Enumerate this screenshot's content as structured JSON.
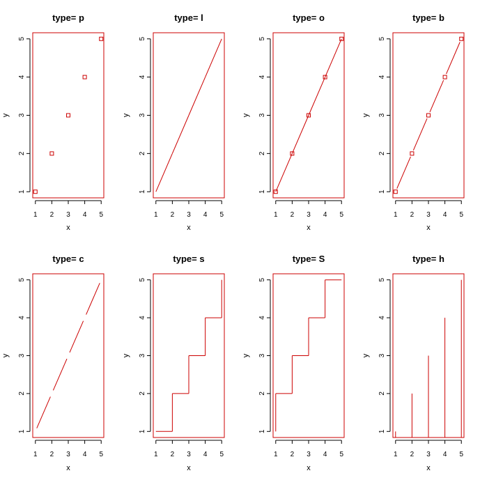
{
  "colors": {
    "series": "#cc0000",
    "axis": "#000000",
    "background": "#ffffff"
  },
  "chart_data": [
    {
      "type": "scatter",
      "title": "type= p",
      "xlabel": "x",
      "ylabel": "y",
      "x": [
        1,
        2,
        3,
        4,
        5
      ],
      "y": [
        1,
        2,
        3,
        4,
        5
      ],
      "xlim": [
        1,
        5
      ],
      "ylim": [
        1,
        5
      ],
      "xticks": [
        "1",
        "2",
        "3",
        "4",
        "5"
      ],
      "yticks": [
        "1",
        "2",
        "3",
        "4",
        "5"
      ],
      "grid": false,
      "plot_type": "p"
    },
    {
      "type": "line",
      "title": "type= l",
      "xlabel": "x",
      "ylabel": "y",
      "x": [
        1,
        2,
        3,
        4,
        5
      ],
      "y": [
        1,
        2,
        3,
        4,
        5
      ],
      "xlim": [
        1,
        5
      ],
      "ylim": [
        1,
        5
      ],
      "xticks": [
        "1",
        "2",
        "3",
        "4",
        "5"
      ],
      "yticks": [
        "1",
        "2",
        "3",
        "4",
        "5"
      ],
      "grid": false,
      "plot_type": "l"
    },
    {
      "type": "line",
      "title": "type= o",
      "xlabel": "x",
      "ylabel": "y",
      "x": [
        1,
        2,
        3,
        4,
        5
      ],
      "y": [
        1,
        2,
        3,
        4,
        5
      ],
      "xlim": [
        1,
        5
      ],
      "ylim": [
        1,
        5
      ],
      "xticks": [
        "1",
        "2",
        "3",
        "4",
        "5"
      ],
      "yticks": [
        "1",
        "2",
        "3",
        "4",
        "5"
      ],
      "grid": false,
      "plot_type": "o"
    },
    {
      "type": "line",
      "title": "type= b",
      "xlabel": "x",
      "ylabel": "y",
      "x": [
        1,
        2,
        3,
        4,
        5
      ],
      "y": [
        1,
        2,
        3,
        4,
        5
      ],
      "xlim": [
        1,
        5
      ],
      "ylim": [
        1,
        5
      ],
      "xticks": [
        "1",
        "2",
        "3",
        "4",
        "5"
      ],
      "yticks": [
        "1",
        "2",
        "3",
        "4",
        "5"
      ],
      "grid": false,
      "plot_type": "b"
    },
    {
      "type": "line",
      "title": "type= c",
      "xlabel": "x",
      "ylabel": "y",
      "x": [
        1,
        2,
        3,
        4,
        5
      ],
      "y": [
        1,
        2,
        3,
        4,
        5
      ],
      "xlim": [
        1,
        5
      ],
      "ylim": [
        1,
        5
      ],
      "xticks": [
        "1",
        "2",
        "3",
        "4",
        "5"
      ],
      "yticks": [
        "1",
        "2",
        "3",
        "4",
        "5"
      ],
      "grid": false,
      "plot_type": "c"
    },
    {
      "type": "line",
      "title": "type= s",
      "xlabel": "x",
      "ylabel": "y",
      "x": [
        1,
        2,
        3,
        4,
        5
      ],
      "y": [
        1,
        2,
        3,
        4,
        5
      ],
      "xlim": [
        1,
        5
      ],
      "ylim": [
        1,
        5
      ],
      "xticks": [
        "1",
        "2",
        "3",
        "4",
        "5"
      ],
      "yticks": [
        "1",
        "2",
        "3",
        "4",
        "5"
      ],
      "grid": false,
      "plot_type": "s"
    },
    {
      "type": "line",
      "title": "type= S",
      "xlabel": "x",
      "ylabel": "y",
      "x": [
        1,
        2,
        3,
        4,
        5
      ],
      "y": [
        1,
        2,
        3,
        4,
        5
      ],
      "xlim": [
        1,
        5
      ],
      "ylim": [
        1,
        5
      ],
      "xticks": [
        "1",
        "2",
        "3",
        "4",
        "5"
      ],
      "yticks": [
        "1",
        "2",
        "3",
        "4",
        "5"
      ],
      "grid": false,
      "plot_type": "S"
    },
    {
      "type": "bar",
      "title": "type= h",
      "xlabel": "x",
      "ylabel": "y",
      "x": [
        1,
        2,
        3,
        4,
        5
      ],
      "y": [
        1,
        2,
        3,
        4,
        5
      ],
      "xlim": [
        1,
        5
      ],
      "ylim": [
        1,
        5
      ],
      "xticks": [
        "1",
        "2",
        "3",
        "4",
        "5"
      ],
      "yticks": [
        "1",
        "2",
        "3",
        "4",
        "5"
      ],
      "grid": false,
      "plot_type": "h"
    }
  ]
}
